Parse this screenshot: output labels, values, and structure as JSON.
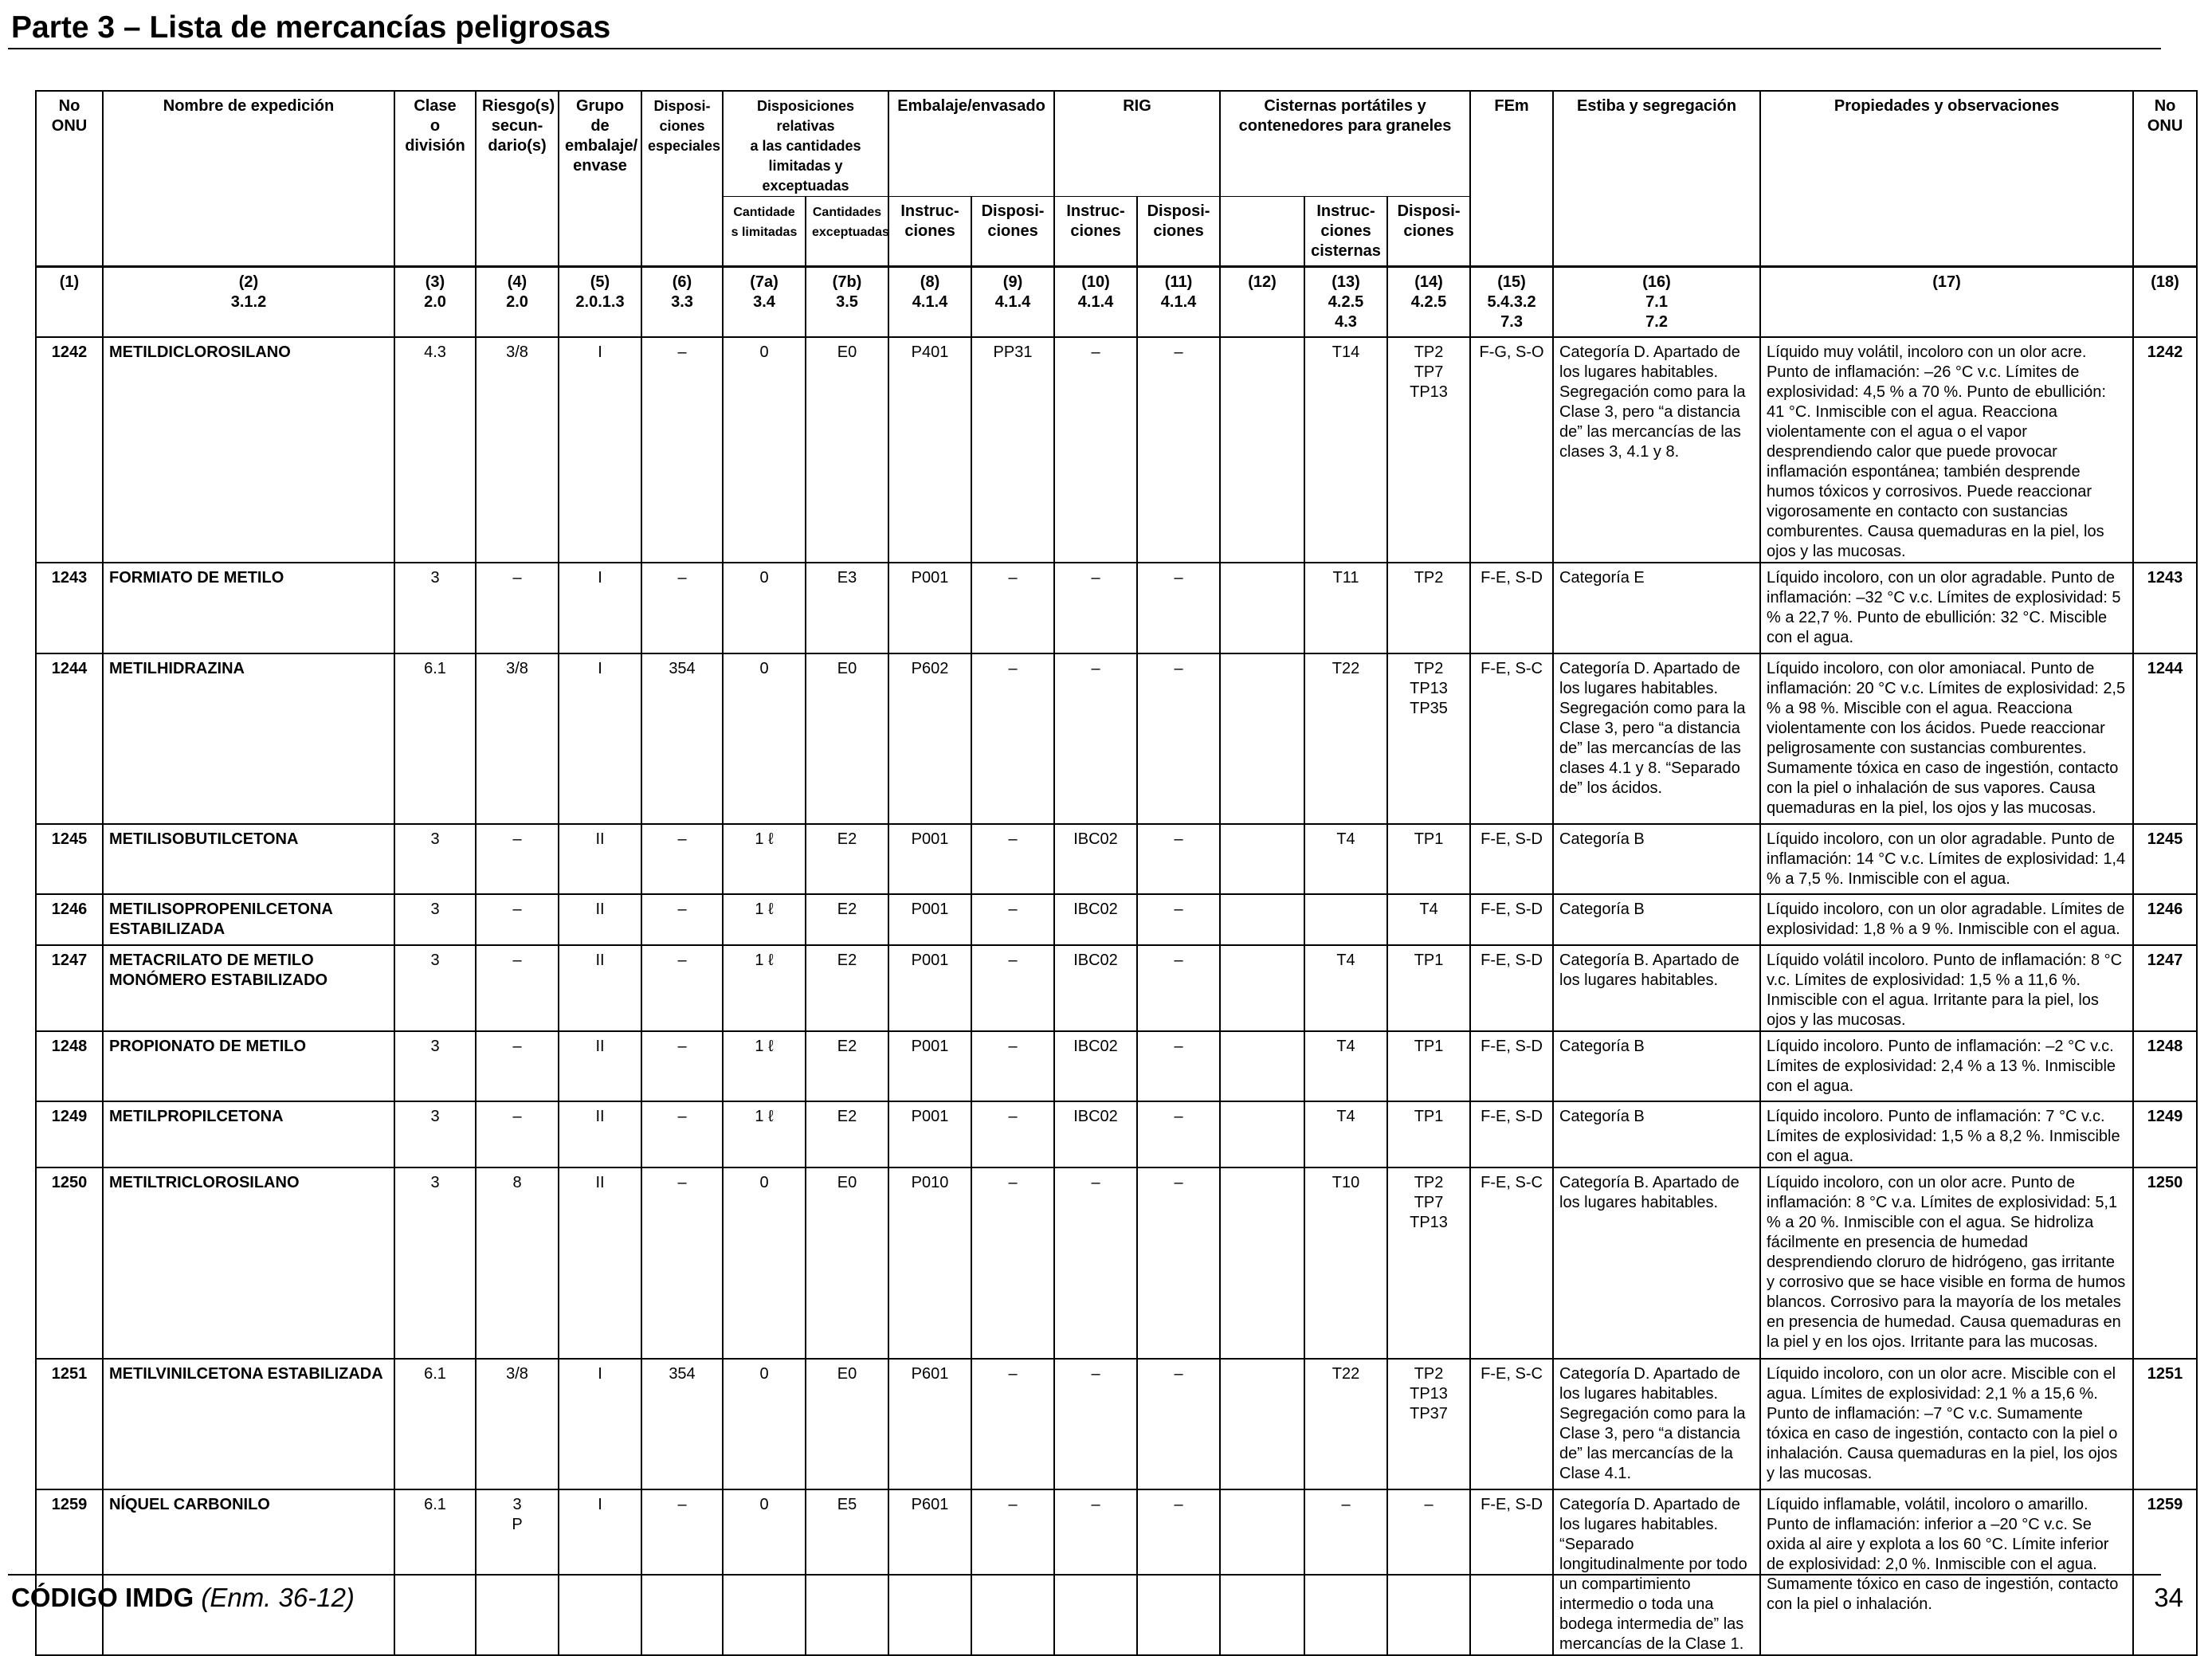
{
  "header": {
    "title": "Parte 3 – Lista de mercancías peligrosas"
  },
  "table": {
    "headers": {
      "un": "No\nONU",
      "name": "Nombre de expedición",
      "class": "Clase\no\ndivisión",
      "subrisk": "Riesgo(s)\nsecun-\ndario(s)",
      "pg": "Grupo de\nembalaje/\nenvase",
      "sp": "Disposi-\nciones\nespeciales",
      "lq_eq": "Disposiciones relativas\na las cantidades\nlimitadas y exceptuadas",
      "lq": "Cantidade\ns limitadas",
      "eq": "Cantidades\nexceptuadas",
      "packing": "Embalaje/envasado",
      "pi": "Instruc-\nciones",
      "pp": "Disposi-\nciones",
      "ibc": "RIG",
      "ibc_i": "Instruc-\nciones",
      "ibc_p": "Disposi-\nciones",
      "tank": "Cisternas portátiles y\ncontenedores para graneles",
      "tank_i": "Instruc-\nciones\ncisternas",
      "tank_p": "Disposi-\nciones",
      "ems": "FEm",
      "stow": "Estiba y segregación",
      "props": "Propiedades y observaciones",
      "un2": "No\nONU"
    },
    "column_numbers": [
      "(1)",
      "(2)\n3.1.2",
      "(3)\n2.0",
      "(4)\n2.0",
      "(5)\n2.0.1.3",
      "(6)\n3.3",
      "(7a)\n3.4",
      "(7b)\n3.5",
      "(8)\n4.1.4",
      "(9)\n4.1.4",
      "(10)\n4.1.4",
      "(11)\n4.1.4",
      "(12)",
      "(13)\n4.2.5\n4.3",
      "(14)\n4.2.5",
      "(15)\n5.4.3.2\n7.3",
      "(16)\n7.1\n7.2",
      "(17)",
      "(18)"
    ],
    "rows": [
      {
        "un": "1242",
        "name": "METILDICLOROSILANO",
        "class": "4.3",
        "subrisk": "3/8",
        "pg": "I",
        "sp": "–",
        "lq": "0",
        "eq": "E0",
        "pi": "P401",
        "pp": "PP31",
        "ibc_i": "–",
        "ibc_p": "–",
        "c12": "",
        "tank_i": "T14",
        "tank_p": "TP2\nTP7\nTP13",
        "ems": "F-G, S-O",
        "stow": "Categoría D. Apartado de los lugares habitables. Segregación como para la Clase 3, pero “a distancia de” las mercancías de las clases 3, 4.1 y 8.",
        "props": "Líquido muy volátil, incoloro con un olor acre. Punto de inflamación: –26 °C v.c. Límites de explosividad: 4,5 % a 70 %. Punto de ebullición: 41 °C. Inmiscible con el agua. Reacciona violentamente con el agua o el vapor desprendiendo calor que puede provocar inflamación espontánea; también desprende humos tóxicos y corrosivos. Puede reaccionar vigorosamente en contacto con sustancias comburentes. Causa quemaduras en la piel, los ojos y las mucosas.",
        "un2": "1242"
      },
      {
        "un": "1243",
        "name": "FORMIATO DE METILO",
        "class": "3",
        "subrisk": "–",
        "pg": "I",
        "sp": "–",
        "lq": "0",
        "eq": "E3",
        "pi": "P001",
        "pp": "–",
        "ibc_i": "–",
        "ibc_p": "–",
        "c12": "",
        "tank_i": "T11",
        "tank_p": "TP2",
        "ems": "F-E, S-D",
        "stow": "Categoría E",
        "props": "Líquido incoloro, con un olor agradable. Punto de inflamación: –32 °C v.c. Límites de explosividad: 5 % a 22,7 %. Punto de ebullición: 32 °C. Miscible con el agua.",
        "un2": "1243"
      },
      {
        "un": "1244",
        "name": "METILHIDRAZINA",
        "class": "6.1",
        "subrisk": "3/8",
        "pg": "I",
        "sp": "354",
        "lq": "0",
        "eq": "E0",
        "pi": "P602",
        "pp": "–",
        "ibc_i": "–",
        "ibc_p": "–",
        "c12": "",
        "tank_i": "T22",
        "tank_p": "TP2\nTP13\nTP35",
        "ems": "F-E, S-C",
        "stow": "Categoría D. Apartado de los lugares habitables. Segregación como para la Clase 3, pero “a distancia de” las mercancías de las clases 4.1 y 8. “Separado de” los ácidos.",
        "props": "Líquido incoloro, con olor amoniacal. Punto de inflamación: 20 °C v.c. Límites de explosividad: 2,5 % a 98 %. Miscible con el agua. Reacciona violentamente con los ácidos. Puede reaccionar peligrosamente con sustancias comburentes. Sumamente tóxica en caso de ingestión, contacto con la piel o inhalación de sus vapores. Causa quemaduras en la piel, los ojos y las mucosas.",
        "un2": "1244"
      },
      {
        "un": "1245",
        "name": "METILISOBUTILCETONA",
        "class": "3",
        "subrisk": "–",
        "pg": "II",
        "sp": "–",
        "lq": "1 ℓ",
        "eq": "E2",
        "pi": "P001",
        "pp": "–",
        "ibc_i": "IBC02",
        "ibc_p": "–",
        "c12": "",
        "tank_i": "T4",
        "tank_p": "TP1",
        "ems": "F-E, S-D",
        "stow": "Categoría B",
        "props": "Líquido incoloro, con un olor agradable. Punto de inflamación: 14 °C v.c. Límites de explosividad: 1,4 % a 7,5 %. Inmiscible con el agua.",
        "un2": "1245"
      },
      {
        "un": "1246",
        "name": "METILISOPROPENILCETONA ESTABILIZADA",
        "class": "3",
        "subrisk": "–",
        "pg": "II",
        "sp": "–",
        "lq": "1 ℓ",
        "eq": "E2",
        "pi": "P001",
        "pp": "–",
        "ibc_i": "IBC02",
        "ibc_p": "–",
        "c12": "",
        "tank_i": "",
        "tank_p": "T4",
        "ems": "F-E, S-D",
        "stow": "Categoría B",
        "props": "Líquido incoloro, con un olor agradable. Límites de explosividad: 1,8 % a 9 %. Inmiscible con el agua.",
        "un2": "1246"
      },
      {
        "un": "1247",
        "name": "METACRILATO DE METILO MONÓMERO ESTABILIZADO",
        "class": "3",
        "subrisk": "–",
        "pg": "II",
        "sp": "–",
        "lq": "1 ℓ",
        "eq": "E2",
        "pi": "P001",
        "pp": "–",
        "ibc_i": "IBC02",
        "ibc_p": "–",
        "c12": "",
        "tank_i": "T4",
        "tank_p": "TP1",
        "ems": "F-E, S-D",
        "stow": "Categoría B. Apartado de los lugares habitables.",
        "props": "Líquido volátil incoloro. Punto de inflamación: 8 °C v.c. Límites de explosividad: 1,5 % a 11,6 %. Inmiscible con el agua. Irritante para la piel, los ojos y las mucosas.",
        "un2": "1247"
      },
      {
        "un": "1248",
        "name": "PROPIONATO DE METILO",
        "class": "3",
        "subrisk": "–",
        "pg": "II",
        "sp": "–",
        "lq": "1 ℓ",
        "eq": "E2",
        "pi": "P001",
        "pp": "–",
        "ibc_i": "IBC02",
        "ibc_p": "–",
        "c12": "",
        "tank_i": "T4",
        "tank_p": "TP1",
        "ems": "F-E, S-D",
        "stow": "Categoría B",
        "props": "Líquido incoloro. Punto de inflamación: –2 °C v.c. Límites de explosividad: 2,4 % a 13 %. Inmiscible con el agua.",
        "un2": "1248"
      },
      {
        "un": "1249",
        "name": "METILPROPILCETONA",
        "class": "3",
        "subrisk": "–",
        "pg": "II",
        "sp": "–",
        "lq": "1 ℓ",
        "eq": "E2",
        "pi": "P001",
        "pp": "–",
        "ibc_i": "IBC02",
        "ibc_p": "–",
        "c12": "",
        "tank_i": "T4",
        "tank_p": "TP1",
        "ems": "F-E, S-D",
        "stow": "Categoría B",
        "props": "Líquido incoloro. Punto de inflamación: 7 °C v.c. Límites de explosividad: 1,5 % a 8,2 %. Inmiscible con el agua.",
        "un2": "1249"
      },
      {
        "un": "1250",
        "name": "METILTRICLOROSILANO",
        "class": "3",
        "subrisk": "8",
        "pg": "II",
        "sp": "–",
        "lq": "0",
        "eq": "E0",
        "pi": "P010",
        "pp": "–",
        "ibc_i": "–",
        "ibc_p": "–",
        "c12": "",
        "tank_i": "T10",
        "tank_p": "TP2\nTP7\nTP13",
        "ems": "F-E, S-C",
        "stow": "Categoría B. Apartado de los lugares habitables.",
        "props": "Líquido incoloro, con un olor acre. Punto de inflamación: 8 °C v.a. Límites de explosividad: 5,1 % a 20 %. Inmiscible con el agua. Se hidroliza fácilmente en presencia de humedad desprendiendo cloruro de hidrógeno, gas irritante y corrosivo que se hace visible en forma de humos blancos. Corrosivo para la mayoría de los metales en presencia de humedad. Causa quemaduras en la piel y en los ojos. Irritante para las mucosas.",
        "un2": "1250"
      },
      {
        "un": "1251",
        "name": "METILVINILCETONA ESTABILIZADA",
        "class": "6.1",
        "subrisk": "3/8",
        "pg": "I",
        "sp": "354",
        "lq": "0",
        "eq": "E0",
        "pi": "P601",
        "pp": "–",
        "ibc_i": "–",
        "ibc_p": "–",
        "c12": "",
        "tank_i": "T22",
        "tank_p": "TP2\nTP13\nTP37",
        "ems": "F-E, S-C",
        "stow": "Categoría D. Apartado de los lugares habitables. Segregación como para la Clase 3, pero “a distancia de” las mercancías de la Clase 4.1.",
        "props": "Líquido incoloro, con un olor acre. Miscible con el agua. Límites de explosividad: 2,1 % a 15,6 %. Punto de inflamación: –7 °C v.c. Sumamente tóxica en caso de ingestión, contacto con la piel o inhalación. Causa quemaduras en la piel, los ojos y las mucosas.",
        "un2": "1251"
      },
      {
        "un": "1259",
        "name": "NÍQUEL CARBONILO",
        "class": "6.1",
        "subrisk": "3\nP",
        "pg": "I",
        "sp": "–",
        "lq": "0",
        "eq": "E5",
        "pi": "P601",
        "pp": "–",
        "ibc_i": "–",
        "ibc_p": "–",
        "c12": "",
        "tank_i": "–",
        "tank_p": "–",
        "ems": "F-E, S-D",
        "stow": "Categoría D. Apartado de los lugares habitables. “Separado longitudinalmente por todo un compartimiento intermedio o toda una bodega intermedia de” las mercancías de la Clase 1.",
        "props": "Líquido inflamable, volátil, incoloro o amarillo. Punto de inflamación: inferior a –20 °C v.c. Se oxida al aire y explota a los 60 °C. Límite inferior de explosividad: 2,0 %. Inmiscible con el agua. Sumamente tóxico en caso de ingestión, contacto con la piel o inhalación.",
        "un2": "1259"
      }
    ]
  },
  "footer": {
    "code": "CÓDIGO IMDG",
    "amendment": "(Enm. 36-12)",
    "page": "34"
  }
}
